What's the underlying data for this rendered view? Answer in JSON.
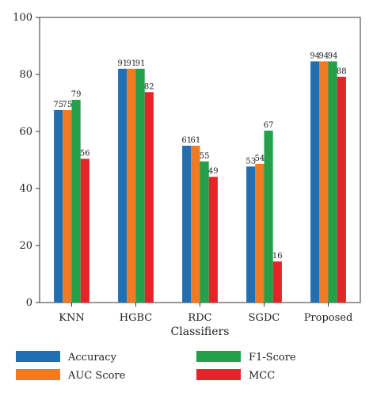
{
  "chart_data": {
    "type": "bar",
    "xlabel": "Classifiers",
    "ylabel": "",
    "ylim": [
      0,
      100
    ],
    "yticks": [
      0,
      20,
      40,
      60,
      80,
      100
    ],
    "grid": false,
    "legend_placement": "bottom",
    "categories": [
      "KNN",
      "HGBC",
      "RDC",
      "SGDC",
      "Proposed"
    ],
    "series": [
      {
        "name": "Accuracy",
        "color": "#1f6fb5",
        "values": [
          67.5,
          82,
          55,
          47.7,
          84.6
        ],
        "labels": [
          "75",
          "91",
          "61",
          "53",
          "94"
        ]
      },
      {
        "name": "AUC Score",
        "color": "#f27a20",
        "values": [
          67.5,
          82,
          55,
          48.6,
          84.6
        ],
        "labels": [
          "75",
          "91",
          "61",
          "54",
          "94"
        ]
      },
      {
        "name": "F1-Score",
        "color": "#24a04a",
        "values": [
          71.1,
          82,
          49.5,
          60.3,
          84.6
        ],
        "labels": [
          "79",
          "91",
          "55",
          "67",
          "94"
        ]
      },
      {
        "name": "MCC",
        "color": "#e0262b",
        "values": [
          50.4,
          73.8,
          44.1,
          14.4,
          79.2
        ],
        "labels": [
          "56",
          "82",
          "49",
          "16",
          "88"
        ]
      }
    ]
  }
}
